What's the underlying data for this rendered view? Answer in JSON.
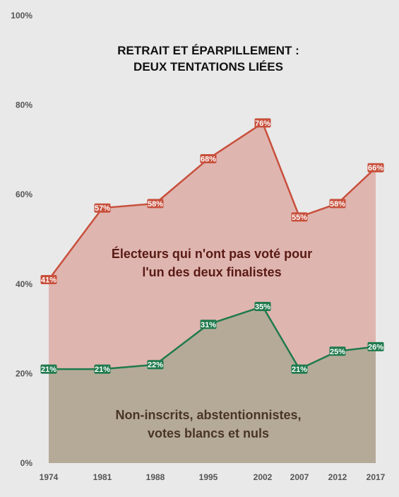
{
  "chart_data": {
    "type": "area",
    "title_lines": [
      "RETRAIT ET ÉPARPILLEMENT :",
      "DEUX TENTATIONS LIÉES"
    ],
    "categories": [
      "1974",
      "1981",
      "1988",
      "1995",
      "2002",
      "2007",
      "2012",
      "2017"
    ],
    "yticks": [
      "0%",
      "20%",
      "40%",
      "60%",
      "80%",
      "100%"
    ],
    "ylim": [
      0,
      100
    ],
    "grid": false,
    "series": [
      {
        "name_lines": [
          "Électeurs qui n'ont pas voté pour",
          "l'un des deux finalistes"
        ],
        "values": [
          41,
          57,
          58,
          68,
          76,
          55,
          58,
          66
        ],
        "labels": [
          "41%",
          "57%",
          "58%",
          "68%",
          "76%",
          "55%",
          "58%",
          "66%"
        ],
        "line_color": "#c8503c",
        "fill_color": "#dfb5b0",
        "text_color": "#5a1a14"
      },
      {
        "name_lines": [
          "Non-inscrits, abstentionnistes,",
          "votes blancs et nuls"
        ],
        "values": [
          21,
          21,
          22,
          31,
          35,
          21,
          25,
          26
        ],
        "labels": [
          "21%",
          "21%",
          "22%",
          "31%",
          "35%",
          "21%",
          "25%",
          "26%"
        ],
        "line_color": "#1f7a4d",
        "fill_color": "#b5aa98",
        "text_color": "#4a3525"
      }
    ]
  }
}
